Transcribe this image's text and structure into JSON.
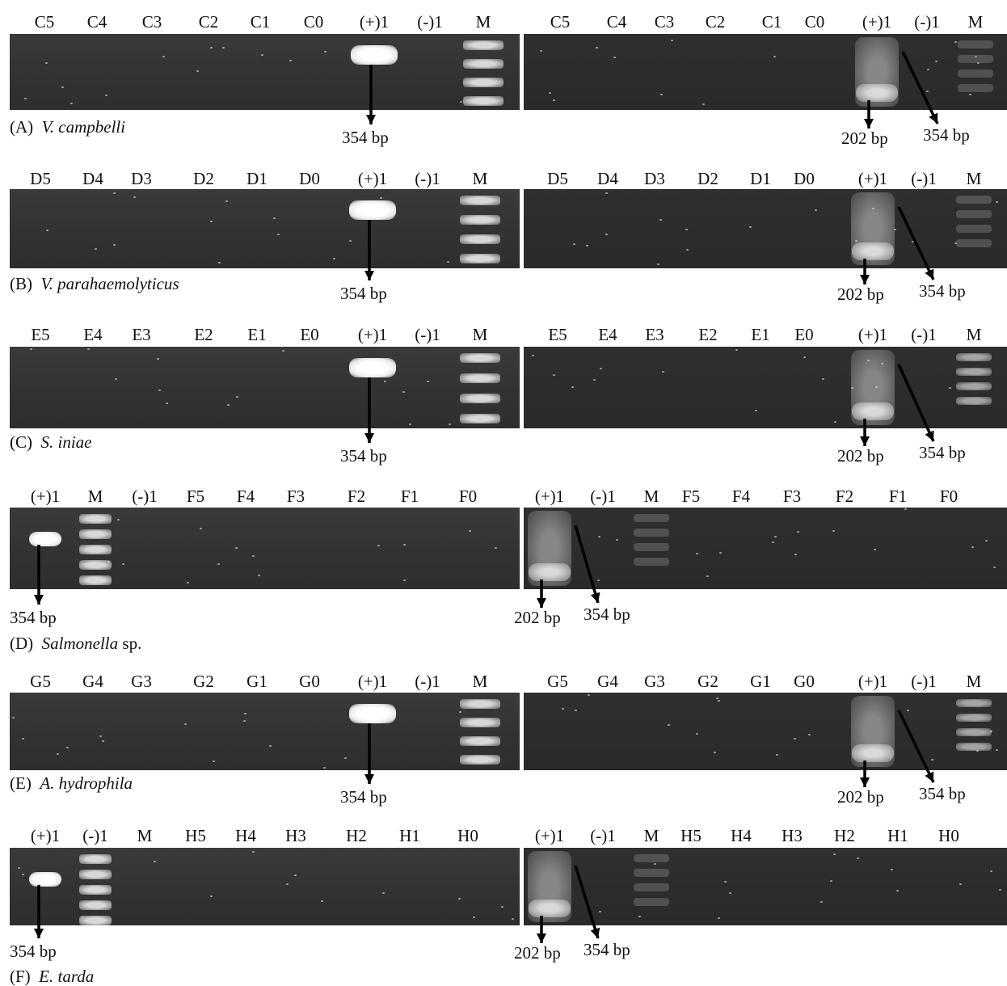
{
  "rows": [
    {
      "id": "A",
      "caption_prefix": "(A)",
      "caption_organism": "V. campbelli",
      "caption_suffix": "",
      "left_lanes": [
        "C5",
        "C4",
        "C3",
        "C2",
        "C1",
        "C0",
        "(+)1",
        "(-)1",
        "M"
      ],
      "right_lanes": [
        "C5",
        "C4",
        "C3",
        "C2",
        "C1",
        "C0",
        "(+)1",
        "(-)1",
        "M"
      ],
      "left_arrow_label": "354 bp",
      "right_arrow_label_small": "202 bp",
      "right_arrow_label_large": "354 bp"
    },
    {
      "id": "B",
      "caption_prefix": "(B)",
      "caption_organism": "V. parahaemolyticus",
      "caption_suffix": "",
      "left_lanes": [
        "D5",
        "D4",
        "D3",
        "D2",
        "D1",
        "D0",
        "(+)1",
        "(-)1",
        "M"
      ],
      "right_lanes": [
        "D5",
        "D4",
        "D3",
        "D2",
        "D1",
        "D0",
        "(+)1",
        "(-)1",
        "M"
      ],
      "left_arrow_label": "354 bp",
      "right_arrow_label_small": "202 bp",
      "right_arrow_label_large": "354 bp"
    },
    {
      "id": "C",
      "caption_prefix": "(C)",
      "caption_organism": "S. iniae",
      "caption_suffix": "",
      "left_lanes": [
        "E5",
        "E4",
        "E3",
        "E2",
        "E1",
        "E0",
        "(+)1",
        "(-)1",
        "M"
      ],
      "right_lanes": [
        "E5",
        "E4",
        "E3",
        "E2",
        "E1",
        "E0",
        "(+)1",
        "(-)1",
        "M"
      ],
      "left_arrow_label": "354 bp",
      "right_arrow_label_small": "202 bp",
      "right_arrow_label_large": "354 bp"
    },
    {
      "id": "D",
      "caption_prefix": "(D)",
      "caption_organism": "Salmonella",
      "caption_suffix": " sp.",
      "left_lanes": [
        "(+)1",
        "M",
        "(-)1",
        "F5",
        "F4",
        "F3",
        "F2",
        "F1",
        "F0"
      ],
      "right_lanes": [
        "(+)1",
        "(-)1",
        "M",
        "F5",
        "F4",
        "F3",
        "F2",
        "F1",
        "F0"
      ],
      "left_arrow_label": "354 bp",
      "right_arrow_label_small": "202 bp",
      "right_arrow_label_large": "354 bp"
    },
    {
      "id": "E",
      "caption_prefix": "(E)",
      "caption_organism": "A. hydrophila",
      "caption_suffix": "",
      "left_lanes": [
        "G5",
        "G4",
        "G3",
        "G2",
        "G1",
        "G0",
        "(+)1",
        "(-)1",
        "M"
      ],
      "right_lanes": [
        "G5",
        "G4",
        "G3",
        "G2",
        "G1",
        "G0",
        "(+)1",
        "(-)1",
        "M"
      ],
      "left_arrow_label": "354 bp",
      "right_arrow_label_small": "202 bp",
      "right_arrow_label_large": "354 bp"
    },
    {
      "id": "F",
      "caption_prefix": "(F)",
      "caption_organism": "E. tarda",
      "caption_suffix": "",
      "left_lanes": [
        "(+)1",
        "(-)1",
        "M",
        "H5",
        "H4",
        "H3",
        "H2",
        "H1",
        "H0"
      ],
      "right_lanes": [
        "(+)1",
        "(-)1",
        "M",
        "H5",
        "H4",
        "H3",
        "H2",
        "H1",
        "H0"
      ],
      "left_arrow_label": "354 bp",
      "right_arrow_label_small": "202 bp",
      "right_arrow_label_large": "354 bp"
    }
  ]
}
